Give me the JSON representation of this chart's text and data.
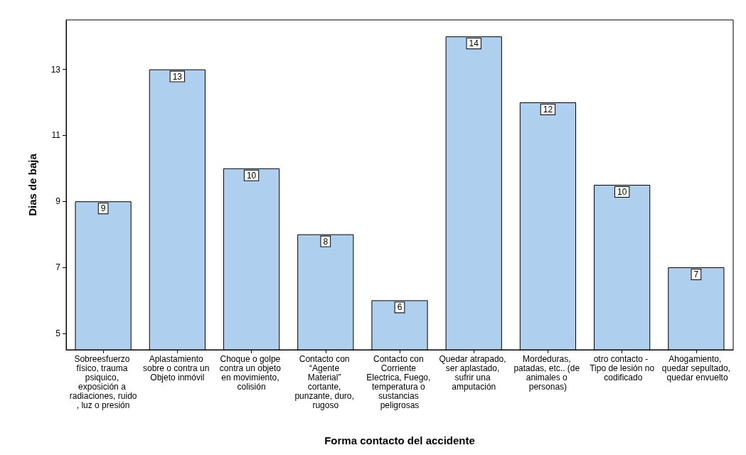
{
  "chart_data": {
    "type": "bar",
    "xlabel": "Forma contacto del accidente",
    "ylabel": "Dias de baja",
    "categories": [
      "Sobreesfuerzo físico, trauma psiquico, exposición a radiaciones, ruido, luz o presión",
      "Aplastamiento sobre o contra un Objeto inmóvil",
      "Choque o golpe contra un objeto en movimiento, colisión",
      "Contacto con “Agente Material” cortante, punzante, duro, rugoso",
      "Contacto con Corriente Electrica, Fuego, temperatura o sustancias peligrosas",
      "Quedar atrapado, ser aplastado, sufrir una amputación",
      "Mordeduras, patadas, etc.. (de animales o personas)",
      "otro contacto - Tipo de lesión no codificado",
      "Ahogamiento, quedar sepultado, quedar envuelto"
    ],
    "values": [
      9,
      13,
      10,
      8,
      6,
      14,
      12,
      9.5,
      7
    ],
    "value_labels": [
      "9",
      "13",
      "10",
      "8",
      "6",
      "14",
      "12",
      "10",
      "7"
    ],
    "color": "#afcfee",
    "ylim": [
      4.5,
      14.5
    ],
    "yticks": [
      5,
      7,
      9,
      11,
      13
    ],
    "grid": false
  }
}
